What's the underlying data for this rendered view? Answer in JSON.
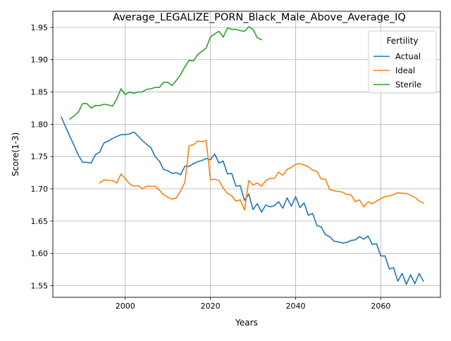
{
  "chart_data": {
    "type": "line",
    "title": "Average_LEGALIZE_PORN_Black_Male_Above_Average_IQ",
    "xlabel": "Years",
    "ylabel": "Score(1-3)",
    "xlim": [
      1983,
      2074
    ],
    "ylim": [
      1.532,
      1.975
    ],
    "xticks": [
      2000,
      2020,
      2040,
      2060
    ],
    "yticks": [
      1.55,
      1.6,
      1.65,
      1.7,
      1.75,
      1.8,
      1.85,
      1.9,
      1.95
    ],
    "ytick_labels": [
      "1.55",
      "1.60",
      "1.65",
      "1.70",
      "1.75",
      "1.80",
      "1.85",
      "1.90",
      "1.95"
    ],
    "grid": true,
    "legend": {
      "title": "Fertility",
      "placement": "top-right"
    },
    "series": [
      {
        "name": "Actual",
        "color": "#1f77b4",
        "x": [
          1985,
          1986,
          1987,
          1988,
          1989,
          1990,
          1991,
          1992,
          1993,
          1994,
          1995,
          1996,
          1997,
          1998,
          1999,
          2000,
          2001,
          2002,
          2003,
          2004,
          2005,
          2006,
          2007,
          2008,
          2009,
          2010,
          2011,
          2012,
          2013,
          2014,
          2015,
          2016,
          2017,
          2018,
          2019,
          2020,
          2021,
          2022,
          2023,
          2024,
          2025,
          2026,
          2027,
          2028,
          2029,
          2030,
          2031,
          2032,
          2033,
          2034,
          2035,
          2036,
          2037,
          2038,
          2039,
          2040,
          2041,
          2042,
          2043,
          2044,
          2045,
          2046,
          2047,
          2048,
          2049,
          2050,
          2051,
          2052,
          2053,
          2054,
          2055,
          2056,
          2057,
          2058,
          2059,
          2060,
          2061,
          2062,
          2063,
          2064,
          2065,
          2066,
          2067,
          2068,
          2069,
          2070
        ],
        "values": [
          1.811,
          1.796,
          1.781,
          1.767,
          1.752,
          1.741,
          1.741,
          1.74,
          1.753,
          1.757,
          1.771,
          1.774,
          1.778,
          1.781,
          1.784,
          1.784,
          1.785,
          1.788,
          1.782,
          1.775,
          1.769,
          1.764,
          1.75,
          1.743,
          1.73,
          1.728,
          1.724,
          1.725,
          1.722,
          1.735,
          1.735,
          1.739,
          1.742,
          1.744,
          1.747,
          1.745,
          1.754,
          1.74,
          1.743,
          1.723,
          1.724,
          1.704,
          1.705,
          1.682,
          1.692,
          1.668,
          1.677,
          1.664,
          1.675,
          1.672,
          1.674,
          1.68,
          1.67,
          1.686,
          1.673,
          1.688,
          1.671,
          1.678,
          1.659,
          1.662,
          1.643,
          1.641,
          1.629,
          1.626,
          1.619,
          1.618,
          1.616,
          1.617,
          1.62,
          1.621,
          1.626,
          1.622,
          1.627,
          1.614,
          1.615,
          1.596,
          1.596,
          1.576,
          1.578,
          1.557,
          1.569,
          1.552,
          1.567,
          1.553,
          1.569,
          1.557
        ]
      },
      {
        "name": "Ideal",
        "color": "#ff7f0e",
        "x": [
          1994,
          1995,
          1996,
          1997,
          1998,
          1999,
          2000,
          2001,
          2002,
          2003,
          2004,
          2005,
          2006,
          2007,
          2008,
          2009,
          2010,
          2011,
          2012,
          2013,
          2014,
          2015,
          2016,
          2017,
          2018,
          2019,
          2020,
          2021,
          2022,
          2023,
          2024,
          2025,
          2026,
          2027,
          2028,
          2029,
          2030,
          2031,
          2032,
          2033,
          2034,
          2035,
          2036,
          2037,
          2038,
          2039,
          2040,
          2041,
          2042,
          2043,
          2044,
          2045,
          2046,
          2047,
          2048,
          2049,
          2050,
          2051,
          2052,
          2053,
          2054,
          2055,
          2056,
          2057,
          2058,
          2059,
          2060,
          2061,
          2062,
          2063,
          2064,
          2065,
          2066,
          2067,
          2068,
          2069,
          2070
        ],
        "values": [
          1.709,
          1.714,
          1.713,
          1.713,
          1.709,
          1.723,
          1.716,
          1.708,
          1.704,
          1.705,
          1.7,
          1.704,
          1.704,
          1.704,
          1.698,
          1.691,
          1.687,
          1.684,
          1.686,
          1.697,
          1.71,
          1.767,
          1.768,
          1.774,
          1.773,
          1.775,
          1.714,
          1.715,
          1.713,
          1.701,
          1.693,
          1.689,
          1.681,
          1.683,
          1.667,
          1.713,
          1.706,
          1.709,
          1.704,
          1.713,
          1.716,
          1.716,
          1.726,
          1.721,
          1.73,
          1.733,
          1.738,
          1.739,
          1.737,
          1.734,
          1.729,
          1.727,
          1.715,
          1.715,
          1.699,
          1.697,
          1.696,
          1.695,
          1.691,
          1.691,
          1.68,
          1.683,
          1.672,
          1.68,
          1.677,
          1.681,
          1.685,
          1.688,
          1.689,
          1.691,
          1.694,
          1.693,
          1.693,
          1.69,
          1.687,
          1.681,
          1.678
        ]
      },
      {
        "name": "Sterile",
        "color": "#2ca02c",
        "x": [
          1987,
          1988,
          1989,
          1990,
          1991,
          1992,
          1993,
          1994,
          1995,
          1996,
          1997,
          1998,
          1999,
          2000,
          2001,
          2002,
          2003,
          2004,
          2005,
          2006,
          2007,
          2008,
          2009,
          2010,
          2011,
          2012,
          2013,
          2014,
          2015,
          2016,
          2017,
          2018,
          2019,
          2020,
          2021,
          2022,
          2023,
          2024,
          2025,
          2026,
          2027,
          2028,
          2029,
          2030,
          2031,
          2032
        ],
        "values": [
          1.808,
          1.813,
          1.819,
          1.832,
          1.832,
          1.825,
          1.829,
          1.829,
          1.831,
          1.83,
          1.828,
          1.839,
          1.855,
          1.846,
          1.85,
          1.848,
          1.85,
          1.85,
          1.854,
          1.855,
          1.857,
          1.857,
          1.865,
          1.865,
          1.86,
          1.868,
          1.877,
          1.889,
          1.899,
          1.898,
          1.908,
          1.913,
          1.918,
          1.935,
          1.94,
          1.944,
          1.935,
          1.949,
          1.947,
          1.947,
          1.945,
          1.944,
          1.951,
          1.947,
          1.934,
          1.931
        ]
      }
    ]
  }
}
